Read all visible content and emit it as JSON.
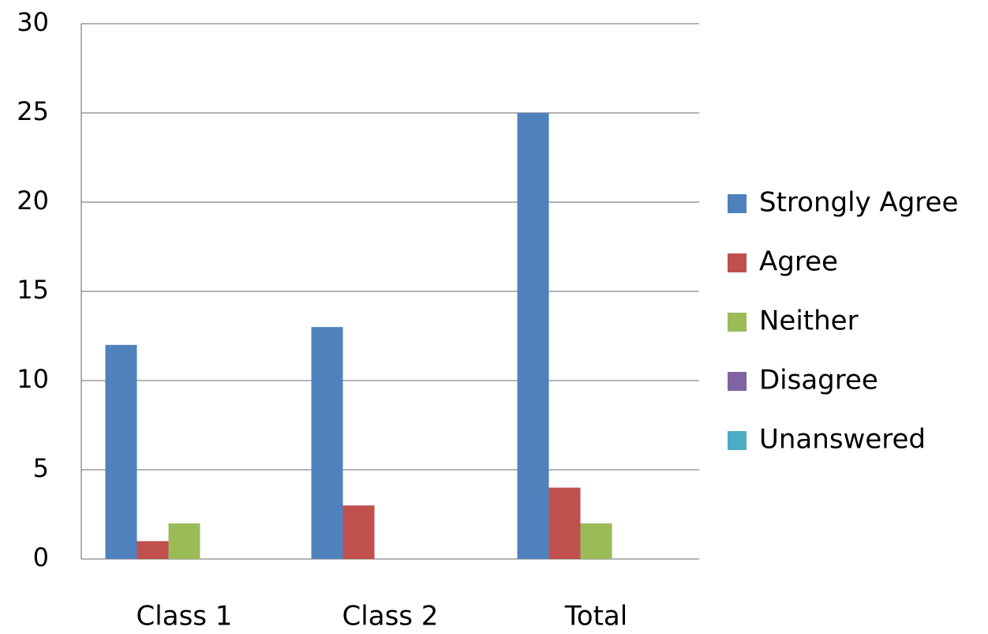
{
  "chart_data": {
    "type": "bar",
    "categories": [
      "Class 1",
      "Class 2",
      "Total"
    ],
    "series": [
      {
        "name": "Strongly Agree",
        "color": "#4f81bd",
        "values": [
          12,
          13,
          25
        ]
      },
      {
        "name": "Agree",
        "color": "#c0504d",
        "values": [
          1,
          3,
          4
        ]
      },
      {
        "name": "Neither",
        "color": "#9bbb59",
        "values": [
          2,
          0,
          2
        ]
      },
      {
        "name": "Disagree",
        "color": "#8064a2",
        "values": [
          0,
          0,
          0
        ]
      },
      {
        "name": "Unanswered",
        "color": "#4bacc6",
        "values": [
          0,
          0,
          0
        ]
      }
    ],
    "ylim": [
      0,
      30
    ],
    "yticks": [
      0,
      5,
      10,
      15,
      20,
      25,
      30
    ],
    "grid": true,
    "legend": "right"
  }
}
